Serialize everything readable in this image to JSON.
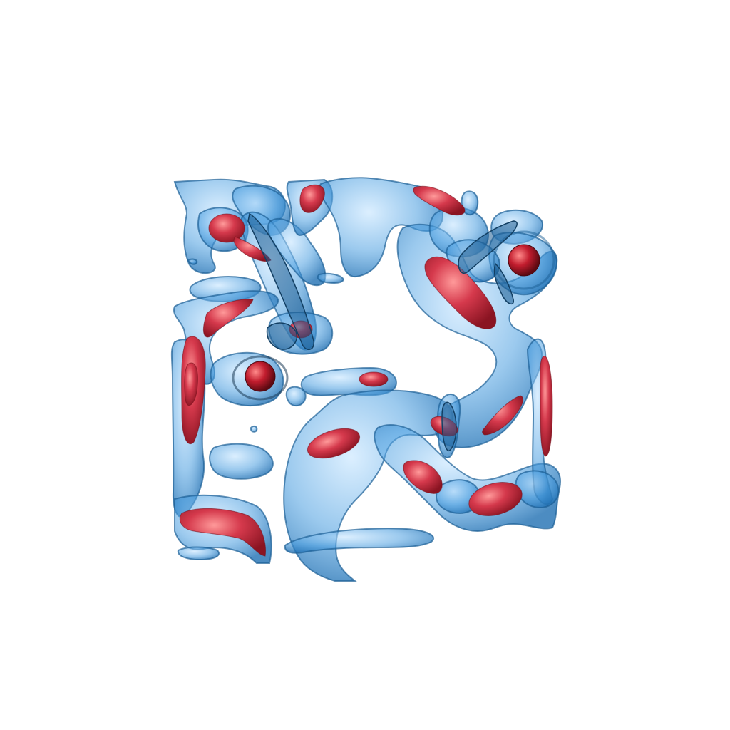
{
  "scene": {
    "background_color": "#ffffff",
    "outer_surface_color": "#3f93d6",
    "outer_surface_edge_color": "#1c5f96",
    "inner_surface_color": "#c8263a",
    "inner_surface_highlight": "#ff8a8a",
    "inner_surface_shadow": "#7a0f1a"
  }
}
